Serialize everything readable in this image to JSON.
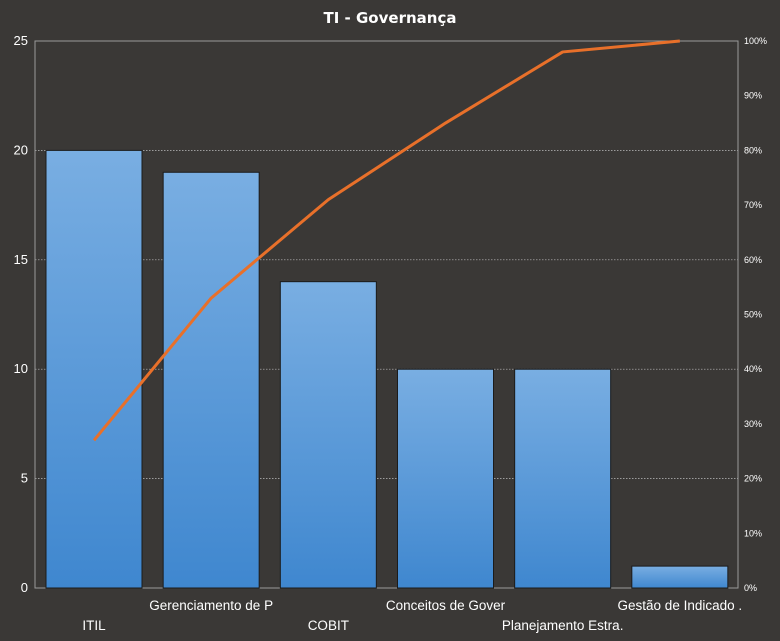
{
  "chart_data": {
    "type": "bar",
    "title": "TI - Governança",
    "categories": [
      "ITIL",
      "Gerenciamento de P",
      "COBIT",
      "Conceitos de Gover",
      "Planejamento Estra.",
      "Gestão de Indicado ."
    ],
    "series": [
      {
        "values": [
          20,
          19,
          14,
          10,
          10,
          1
        ]
      },
      {
        "type": "line",
        "axis": "right",
        "values": [
          27,
          53,
          71,
          85,
          98,
          100
        ]
      }
    ],
    "ylim": [
      0,
      25
    ],
    "yticks": [
      "0",
      "5",
      "10",
      "15",
      "20",
      "25"
    ],
    "y2lim": [
      0,
      100
    ],
    "y2ticks": [
      "0%",
      "10%",
      "20%",
      "30%",
      "40%",
      "50%",
      "60%",
      "70%",
      "80%",
      "90%",
      "100%"
    ],
    "grid": true,
    "legend": "none",
    "colors": {
      "bar_top": "#79aee2",
      "bar_bottom": "#3f87cf",
      "line": "#e8702a",
      "background": "#3a3836",
      "plot_border": "#9a9a9a",
      "grid": "#bdbdbd"
    }
  }
}
